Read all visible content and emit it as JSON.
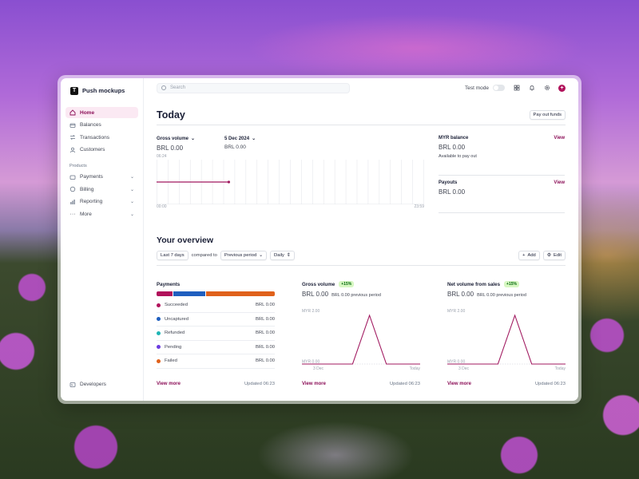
{
  "brand": {
    "name": "Push mockups",
    "logo_letter": "T"
  },
  "sidebar": {
    "items": [
      {
        "label": "Home",
        "icon": "home-icon",
        "active": true
      },
      {
        "label": "Balances",
        "icon": "balance-icon"
      },
      {
        "label": "Transactions",
        "icon": "transactions-icon"
      },
      {
        "label": "Customers",
        "icon": "customers-icon"
      }
    ],
    "section_label": "Products",
    "products": [
      {
        "label": "Payments",
        "icon": "payments-icon"
      },
      {
        "label": "Billing",
        "icon": "billing-icon"
      },
      {
        "label": "Reporting",
        "icon": "reporting-icon"
      },
      {
        "label": "More",
        "icon": "more-icon"
      }
    ],
    "developers": "Developers"
  },
  "topbar": {
    "search_placeholder": "Search",
    "test_mode": "Test mode",
    "avatar_letter": "+"
  },
  "today": {
    "title": "Today",
    "payout_button": "Pay out funds",
    "gross_volume_label": "Gross volume",
    "gross_volume_value": "BRL 0.00",
    "compare_date_label": "5 Dec 2024",
    "compare_date_value": "BRL 0.00",
    "current_time": "06:24",
    "axis_start": "00:00",
    "axis_end": "23:59",
    "progress_fraction": 0.27,
    "myr_balance_label": "MYR balance",
    "myr_balance_value": "BRL 0.00",
    "myr_balance_sub": "Available to pay out",
    "payouts_label": "Payouts",
    "payouts_value": "BRL 0.00",
    "view_link": "View"
  },
  "overview": {
    "title": "Your overview",
    "range": "Last 7 days",
    "compared_to": "compared to",
    "comparison": "Previous period",
    "granularity": "Daily",
    "add_button": "Add",
    "edit_button": "Edit"
  },
  "payments_card": {
    "title": "Payments",
    "segments": [
      {
        "color": "#b1125b",
        "fraction": 0.14
      },
      {
        "color": "#1f5fbf",
        "fraction": 0.27
      },
      {
        "color": "#e0611b",
        "fraction": 0.59
      }
    ],
    "rows": [
      {
        "label": "Succeeded",
        "amount": "BRL 0.00",
        "color": "#b1125b"
      },
      {
        "label": "Uncaptured",
        "amount": "BRL 0.00",
        "color": "#1f5fbf"
      },
      {
        "label": "Refunded",
        "amount": "BRL 0.00",
        "color": "#1fb5b5"
      },
      {
        "label": "Pending",
        "amount": "BRL 0.00",
        "color": "#6c3ce0"
      },
      {
        "label": "Failed",
        "amount": "BRL 0.00",
        "color": "#e0611b"
      }
    ],
    "view_more": "View more",
    "updated": "Updated 06:23"
  },
  "gross_card": {
    "title": "Gross volume",
    "badge": "+15%",
    "value": "BRL 0.00",
    "previous": "BRL 0.00 previous period",
    "y_max": "MYR 2.00",
    "y_min": "MYR 0.00",
    "x_start": "3 Dec",
    "x_end": "Today",
    "series": [
      0,
      0,
      0,
      0,
      2,
      0,
      0,
      0
    ],
    "view_more": "View more",
    "updated": "Updated 06:23"
  },
  "net_card": {
    "title": "Net volume from sales",
    "badge": "+15%",
    "value": "BRL 0.00",
    "previous": "BRL 0.00 previous period",
    "y_max": "MYR 2.00",
    "y_min": "MYR 0.00",
    "x_start": "3 Dec",
    "x_end": "Today",
    "series": [
      0,
      0,
      0,
      0,
      2,
      0,
      0,
      0
    ],
    "view_more": "View more",
    "updated": "Updated 06:23"
  },
  "colors": {
    "accent": "#8b0e57",
    "line": "#a0185f"
  }
}
